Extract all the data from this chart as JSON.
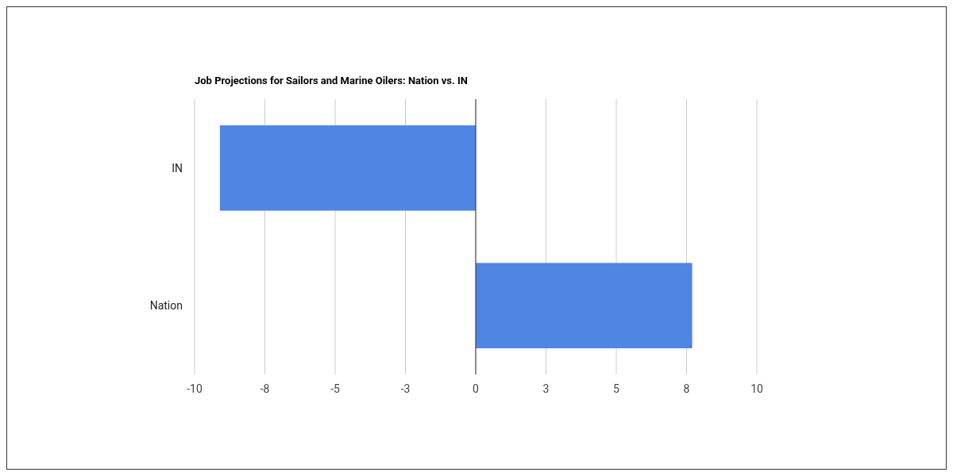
{
  "chart_data": {
    "type": "bar",
    "orientation": "horizontal",
    "title": "Job Projections for Sailors and Marine Oilers: Nation vs. IN",
    "categories": [
      "IN",
      "Nation"
    ],
    "values": [
      -9.1,
      7.7
    ],
    "color": "#5086e3",
    "xlim": [
      -10,
      10
    ],
    "xticks": [
      -10,
      {
        "value": -7.5,
        "label": "-8"
      },
      -5,
      {
        "value": -2.5,
        "label": "-3"
      },
      0,
      {
        "value": 2.5,
        "label": "3"
      },
      5,
      {
        "value": 7.5,
        "label": "8"
      },
      10
    ],
    "grid": "x"
  }
}
